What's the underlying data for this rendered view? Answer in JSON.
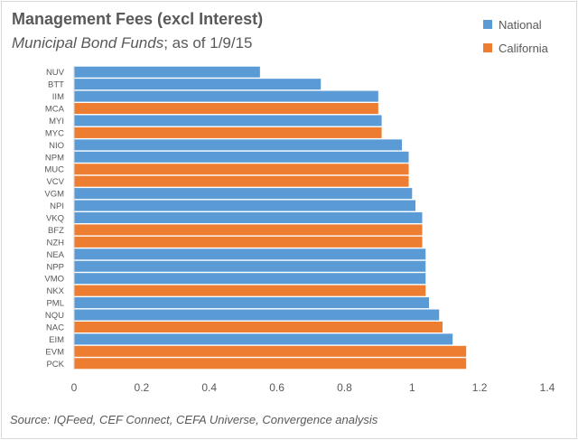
{
  "title": "Management Fees (excl Interest)",
  "subtitle_italic": "Municipal Bond Funds",
  "subtitle_rest": "; as of 1/9/15",
  "source": "Source:  IQFeed, CEF Connect, CEFA Universe, Convergence analysis",
  "colors": {
    "National": "#5b9bd5",
    "California": "#ed7d31"
  },
  "chart_data": {
    "type": "bar",
    "orientation": "horizontal",
    "title": "Management Fees (excl Interest)",
    "subtitle": "Municipal Bond Funds; as of 1/9/15",
    "xlabel": "",
    "ylabel": "",
    "xlim": [
      0,
      1.4
    ],
    "xticks": [
      "0",
      "0.2",
      "0.4",
      "0.6",
      "0.8",
      "1",
      "1.2",
      "1.4"
    ],
    "legend_position": "top-right",
    "legend": [
      "National",
      "California"
    ],
    "categories": [
      "NUV",
      "BTT",
      "IIM",
      "MCA",
      "MYI",
      "MYC",
      "NIO",
      "NPM",
      "MUC",
      "VCV",
      "VGM",
      "NPI",
      "VKQ",
      "BFZ",
      "NZH",
      "NEA",
      "NPP",
      "VMO",
      "NKX",
      "PML",
      "NQU",
      "NAC",
      "EIM",
      "EVM",
      "PCK"
    ],
    "values": [
      0.55,
      0.73,
      0.9,
      0.9,
      0.91,
      0.91,
      0.97,
      0.99,
      0.99,
      0.99,
      1.0,
      1.01,
      1.03,
      1.03,
      1.03,
      1.04,
      1.04,
      1.04,
      1.04,
      1.05,
      1.08,
      1.09,
      1.12,
      1.16,
      1.16
    ],
    "groups": [
      "National",
      "National",
      "National",
      "California",
      "National",
      "California",
      "National",
      "National",
      "California",
      "California",
      "National",
      "National",
      "National",
      "California",
      "California",
      "National",
      "National",
      "National",
      "California",
      "National",
      "National",
      "California",
      "National",
      "California",
      "California"
    ]
  }
}
